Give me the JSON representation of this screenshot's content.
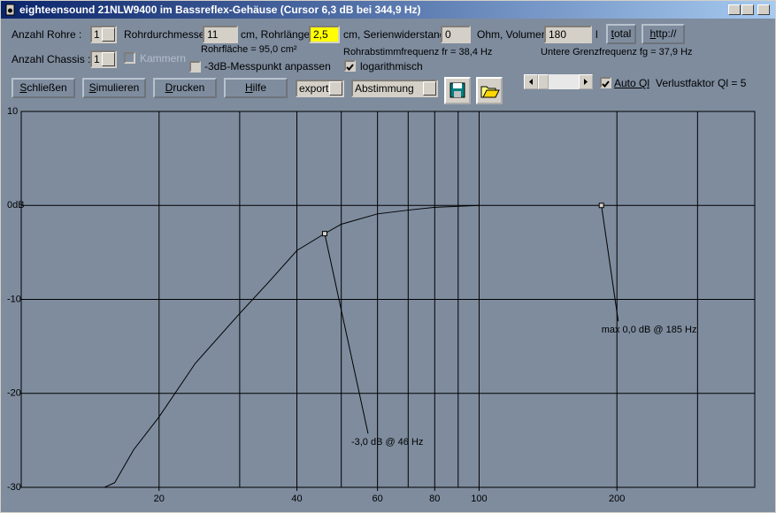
{
  "window": {
    "title": "eighteensound 21NLW9400 im Bassreflex-Gehäuse (Cursor 6,3 dB bei 344,9 Hz)"
  },
  "controls": {
    "rohre_label": "Anzahl Rohre :",
    "rohre_value": "1",
    "durchmesser_label": "Rohrdurchmesser",
    "durchmesser_value": "11",
    "laenge_label": "cm, Rohrlänge",
    "laenge_value": "2,5",
    "widerstand_label": "cm, Serienwiderstand",
    "widerstand_value": "0",
    "volumen_label": "Ohm, Volumen",
    "volumen_value": "180",
    "volumen_unit": "l",
    "total_button": "total",
    "http_button": "http://",
    "chassis_label": "Anzahl Chassis :",
    "chassis_value": "1",
    "kammern": {
      "label": "Kammern",
      "checked": false
    },
    "rohrflaeche": "Rohrfläche = 95,0 cm²",
    "messpunkt": {
      "label": "-3dB-Messpunkt anpassen",
      "checked": false
    },
    "abstimmfrequenz": "Rohrabstimmfrequenz fr = 38,4 Hz",
    "logarithmisch": {
      "label": "logarithmisch",
      "checked": true
    },
    "grenzfrequenz": "Untere Grenzfrequenz fg = 37,9 Hz",
    "buttons": [
      "Schließen",
      "Simulieren",
      "Drucken",
      "Hilfe"
    ],
    "export_value": "export",
    "abstimmung_value": "Abstimmung",
    "auto_ql": {
      "label": "Auto Ql",
      "checked": true
    },
    "verlustfaktor": "Verlustfaktor Ql = 5"
  },
  "chart_data": {
    "type": "line",
    "color": "#000000",
    "log_x": true,
    "x": [
      15.2,
      16,
      17.6,
      20,
      24,
      30,
      34.5,
      40,
      46,
      50,
      60,
      70,
      80,
      90,
      100
    ],
    "values": [
      -30,
      -29.5,
      -26,
      -22.5,
      -16.8,
      -11.5,
      -8.3,
      -4.8,
      -3,
      -2,
      -0.9,
      -0.5,
      -0.2,
      -0.1,
      0
    ],
    "xlim": [
      10,
      400
    ],
    "ylim": [
      -30,
      10
    ],
    "xticks": [
      20,
      40,
      60,
      80,
      100,
      200
    ],
    "xgrid": [
      20,
      30,
      40,
      50,
      60,
      70,
      80,
      90,
      100,
      200,
      300
    ],
    "yticks": [
      10,
      {
        "value": 0,
        "label": "0dB"
      },
      -10,
      -20,
      -30
    ],
    "annotations": [
      {
        "x": 46,
        "y": -3,
        "label": "-3,0 dB @  46 Hz"
      },
      {
        "x": 185,
        "y": 0,
        "label": "max 0,0 dB @ 185 Hz"
      }
    ]
  }
}
